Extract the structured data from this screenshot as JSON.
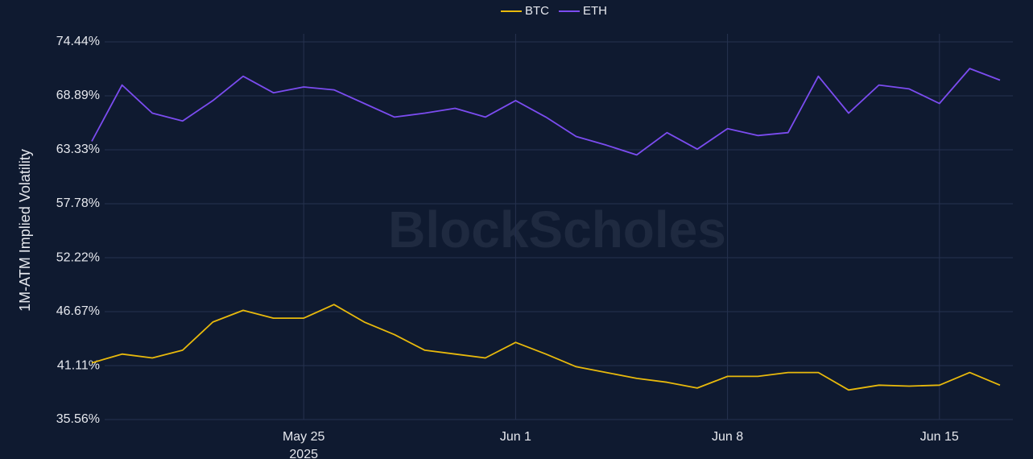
{
  "chart_data": {
    "type": "line",
    "y_label": "1M-ATM Implied Volatility",
    "watermark": "BlockScholes",
    "legend": "top",
    "grid": true,
    "x": [
      "2025-05-18",
      "2025-05-19",
      "2025-05-20",
      "2025-05-21",
      "2025-05-22",
      "2025-05-23",
      "2025-05-24",
      "2025-05-25",
      "2025-05-26",
      "2025-05-27",
      "2025-05-28",
      "2025-05-29",
      "2025-05-30",
      "2025-05-31",
      "2025-06-01",
      "2025-06-02",
      "2025-06-03",
      "2025-06-04",
      "2025-06-05",
      "2025-06-06",
      "2025-06-07",
      "2025-06-08",
      "2025-06-09",
      "2025-06-10",
      "2025-06-11",
      "2025-06-12",
      "2025-06-13",
      "2025-06-14",
      "2025-06-15",
      "2025-06-16",
      "2025-06-17"
    ],
    "series": [
      {
        "name": "BTC",
        "color": "#e8b90c",
        "values": [
          41.4,
          42.3,
          41.9,
          42.7,
          45.6,
          46.8,
          46.0,
          46.0,
          47.4,
          45.6,
          44.3,
          42.7,
          42.3,
          41.9,
          43.5,
          42.3,
          41.0,
          40.4,
          39.8,
          39.4,
          38.8,
          40.0,
          40.0,
          40.4,
          40.4,
          38.6,
          39.1,
          39.0,
          39.1,
          40.4,
          39.1
        ]
      },
      {
        "name": "ETH",
        "color": "#7b4cf0",
        "values": [
          64.2,
          70.0,
          67.1,
          66.3,
          68.4,
          70.9,
          69.2,
          69.8,
          69.5,
          68.1,
          66.7,
          67.1,
          67.6,
          66.7,
          68.4,
          66.7,
          64.7,
          63.8,
          62.8,
          65.1,
          63.4,
          65.5,
          64.8,
          65.1,
          70.9,
          67.1,
          70.0,
          69.6,
          68.1,
          71.7,
          70.5
        ]
      }
    ],
    "xlim": [
      "2025-05-18",
      "2025-06-17"
    ],
    "xticks": [
      {
        "value": "2025-05-25",
        "label": "May 25\n2025"
      },
      {
        "value": "2025-06-01",
        "label": "Jun 1"
      },
      {
        "value": "2025-06-08",
        "label": "Jun 8"
      },
      {
        "value": "2025-06-15",
        "label": "Jun 15"
      }
    ],
    "ylim": [
      35.56,
      74.44
    ],
    "yticks": [
      {
        "value": 35.56,
        "label": "35.56%"
      },
      {
        "value": 41.11,
        "label": "41.11%"
      },
      {
        "value": 46.67,
        "label": "46.67%"
      },
      {
        "value": 52.22,
        "label": "52.22%"
      },
      {
        "value": 57.78,
        "label": "57.78%"
      },
      {
        "value": 63.33,
        "label": "63.33%"
      },
      {
        "value": 68.89,
        "label": "68.89%"
      },
      {
        "value": 74.44,
        "label": "74.44%"
      }
    ]
  }
}
